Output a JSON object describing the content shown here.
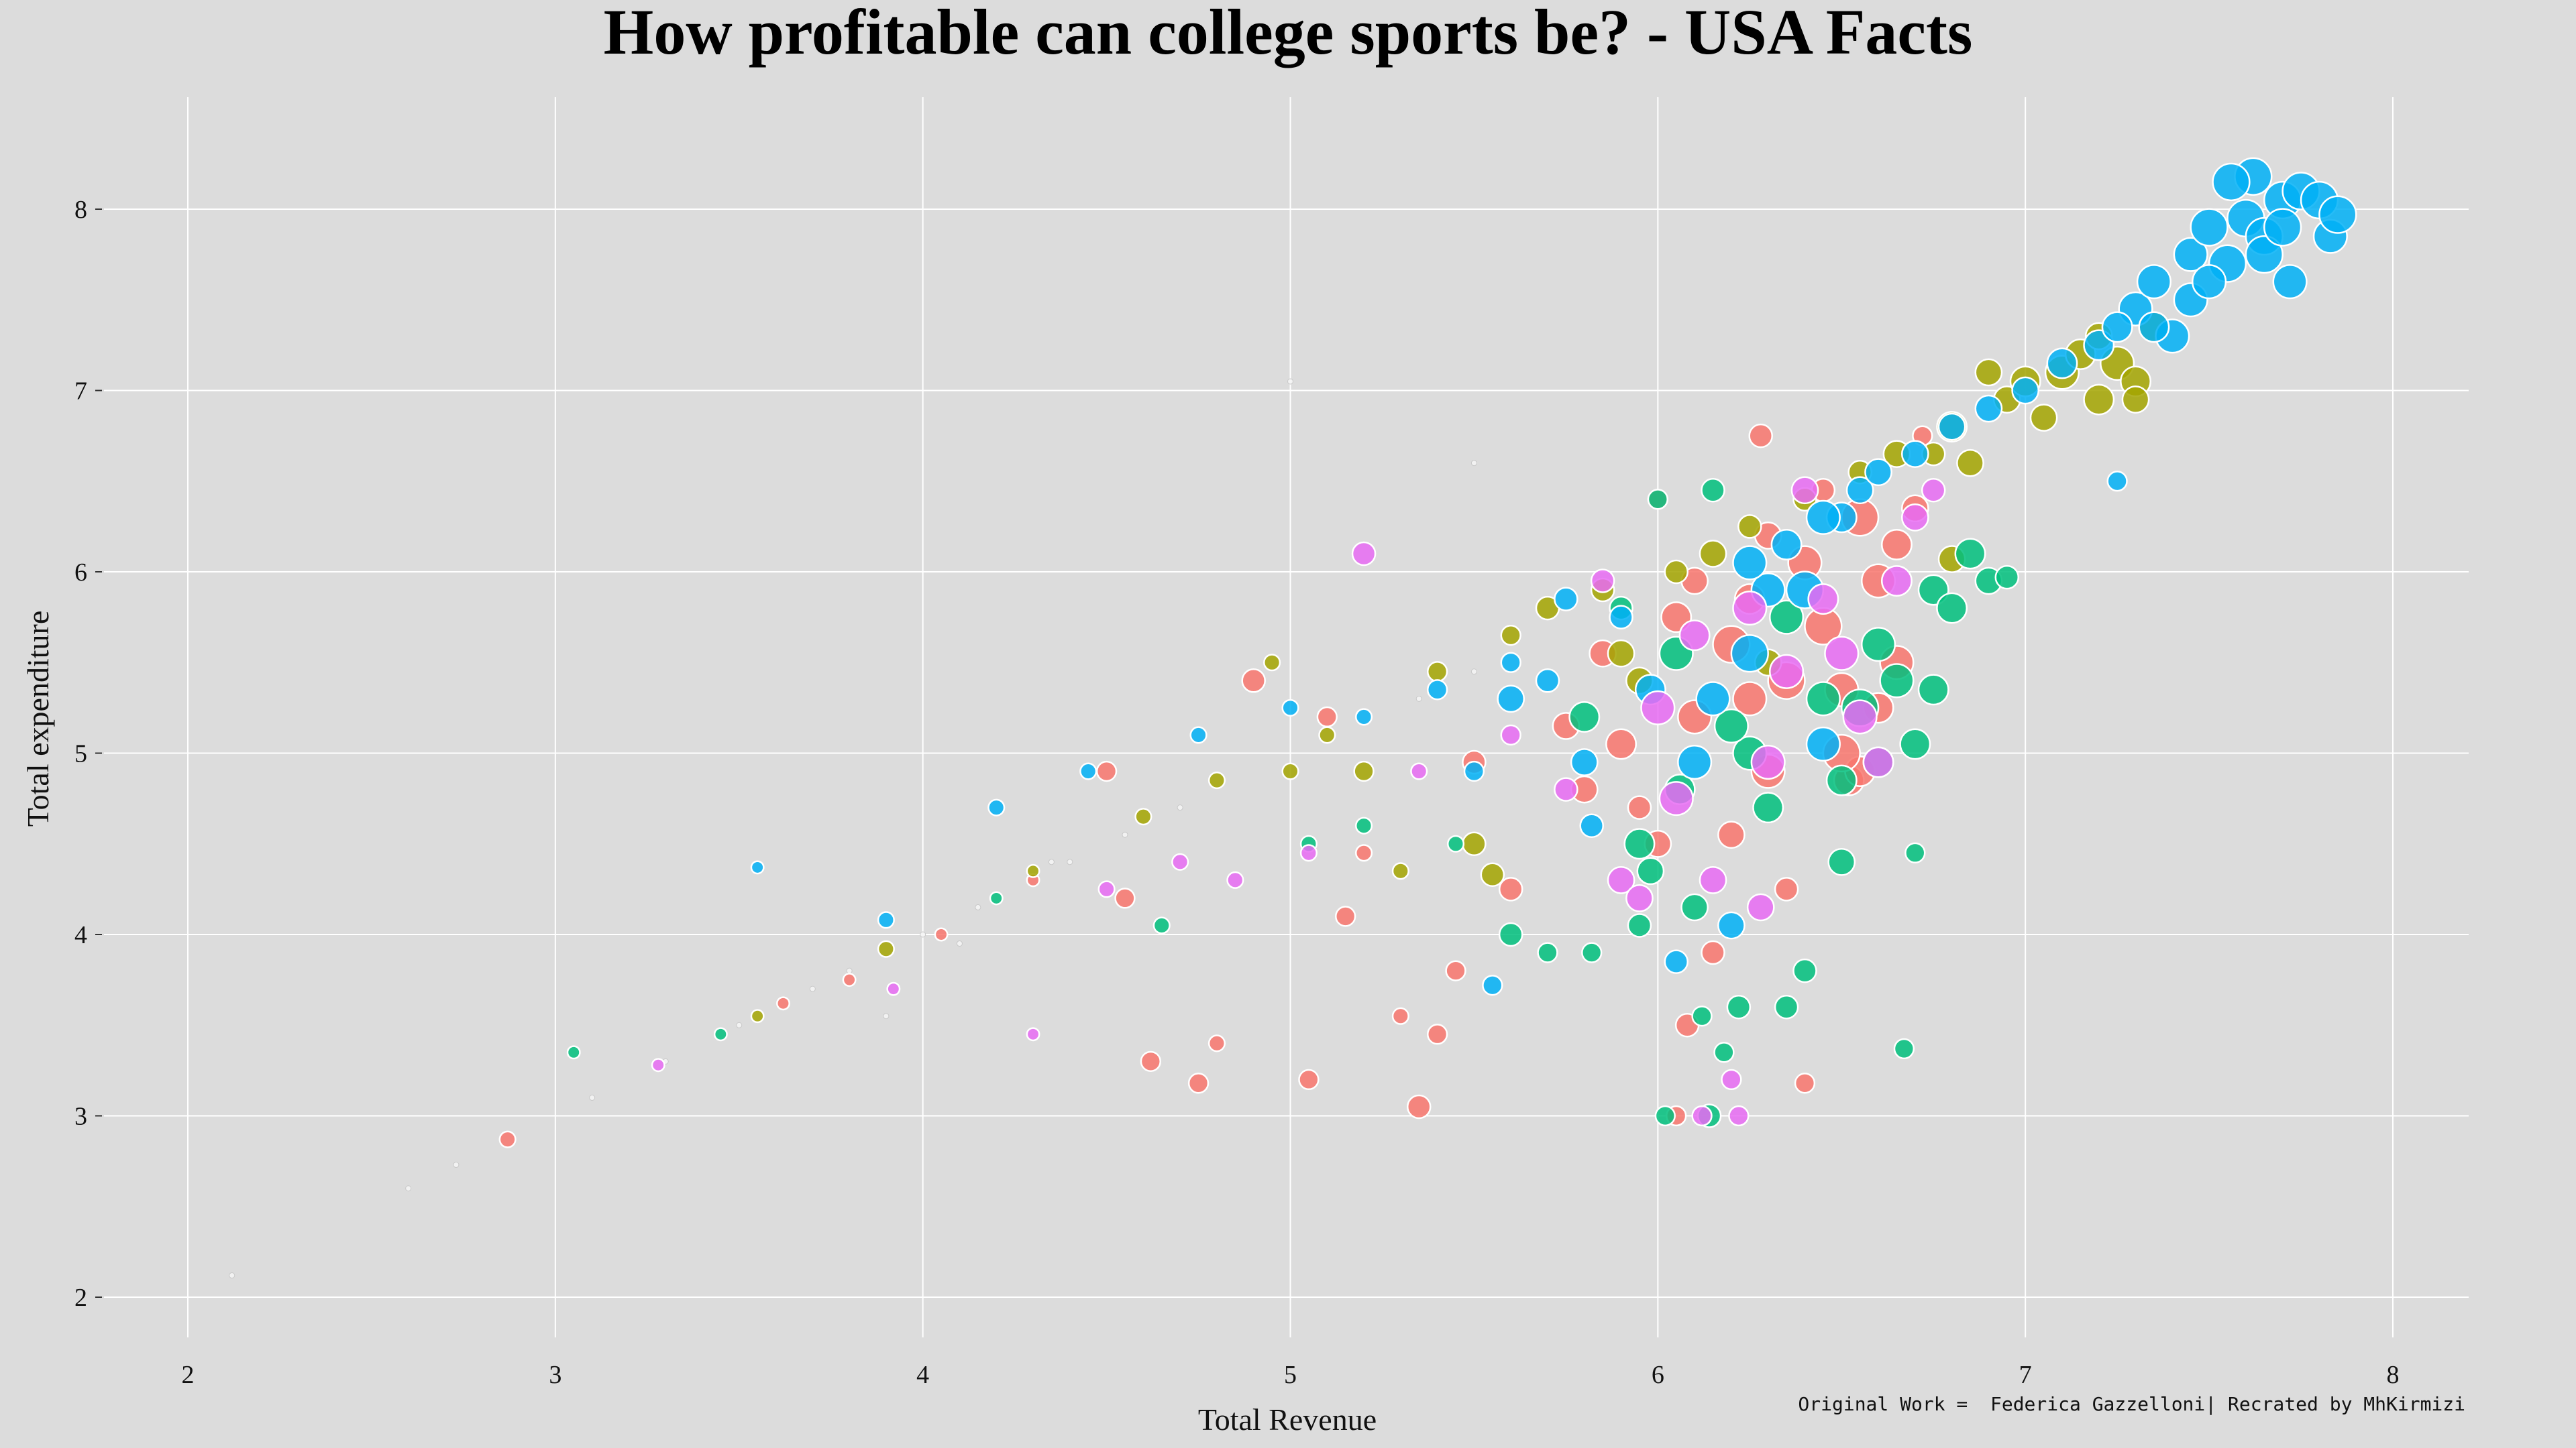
{
  "chart_data": {
    "type": "scatter",
    "title": "How profitable can college sports be? - USA Facts",
    "xlabel": "Total Revenue",
    "ylabel": "Total expenditure",
    "xlim": [
      1.8,
      8.2
    ],
    "ylim": [
      1.75,
      8.5
    ],
    "x_ticks": [
      "2",
      "3",
      "4",
      "5",
      "6",
      "7",
      "8"
    ],
    "y_ticks": [
      "2",
      "3",
      "4",
      "5",
      "6",
      "7",
      "8"
    ],
    "grid": true,
    "legend": "none",
    "series_colors": [
      "#f8766d",
      "#a3a500",
      "#00bf7d",
      "#00b0f6",
      "#e76bf3"
    ],
    "series": [
      {
        "color": "#f8766d",
        "points": [
          [
            2.87,
            2.87,
            3
          ],
          [
            3.62,
            3.62,
            2
          ],
          [
            3.8,
            3.75,
            2
          ],
          [
            4.05,
            4.0,
            2
          ],
          [
            4.5,
            4.9,
            4
          ],
          [
            4.55,
            4.2,
            4
          ],
          [
            4.62,
            3.3,
            4
          ],
          [
            4.75,
            3.18,
            4
          ],
          [
            4.8,
            3.4,
            3
          ],
          [
            4.9,
            5.4,
            5
          ],
          [
            5.05,
            3.2,
            4
          ],
          [
            5.15,
            4.1,
            4
          ],
          [
            5.2,
            4.45,
            3
          ],
          [
            5.3,
            3.55,
            3
          ],
          [
            5.35,
            3.05,
            5
          ],
          [
            5.4,
            3.45,
            4
          ],
          [
            5.45,
            3.8,
            4
          ],
          [
            5.6,
            4.25,
            5
          ],
          [
            5.8,
            4.8,
            6
          ],
          [
            5.9,
            5.05,
            7
          ],
          [
            5.95,
            4.7,
            5
          ],
          [
            6.0,
            6.4,
            4
          ],
          [
            6.05,
            3.0,
            4
          ],
          [
            6.08,
            3.5,
            5
          ],
          [
            6.1,
            5.2,
            8
          ],
          [
            6.15,
            3.9,
            5
          ],
          [
            6.2,
            5.6,
            9
          ],
          [
            6.25,
            5.85,
            7
          ],
          [
            6.3,
            4.9,
            8
          ],
          [
            6.35,
            5.4,
            9
          ],
          [
            6.4,
            6.05,
            8
          ],
          [
            6.45,
            5.7,
            9
          ],
          [
            6.5,
            5.35,
            8
          ],
          [
            6.52,
            4.85,
            7
          ],
          [
            6.55,
            6.3,
            9
          ],
          [
            6.6,
            5.95,
            8
          ],
          [
            6.65,
            6.15,
            7
          ],
          [
            6.7,
            6.35,
            6
          ],
          [
            6.72,
            6.75,
            4
          ],
          [
            6.28,
            6.75,
            5
          ],
          [
            6.4,
            3.18,
            4
          ],
          [
            5.75,
            5.15,
            6
          ],
          [
            6.0,
            4.5,
            6
          ],
          [
            6.35,
            4.25,
            5
          ],
          [
            6.55,
            4.9,
            7
          ],
          [
            6.65,
            5.5,
            8
          ],
          [
            5.85,
            5.55,
            6
          ],
          [
            6.05,
            5.75,
            7
          ],
          [
            6.3,
            6.2,
            6
          ],
          [
            6.45,
            6.45,
            5
          ],
          [
            5.1,
            5.2,
            4
          ],
          [
            4.3,
            4.3,
            2
          ],
          [
            5.5,
            4.95,
            5
          ],
          [
            6.2,
            4.55,
            6
          ],
          [
            6.5,
            5.0,
            9
          ],
          [
            6.25,
            5.3,
            8
          ],
          [
            6.1,
            5.95,
            6
          ],
          [
            6.6,
            5.25,
            7
          ]
        ]
      },
      {
        "color": "#a3a500",
        "points": [
          [
            3.55,
            3.55,
            2
          ],
          [
            3.9,
            3.92,
            3
          ],
          [
            4.3,
            4.35,
            2
          ],
          [
            4.6,
            4.65,
            3
          ],
          [
            4.8,
            4.85,
            3
          ],
          [
            4.95,
            5.5,
            3
          ],
          [
            5.1,
            5.1,
            3
          ],
          [
            5.2,
            4.9,
            4
          ],
          [
            5.3,
            4.35,
            3
          ],
          [
            5.4,
            5.45,
            4
          ],
          [
            5.5,
            4.5,
            5
          ],
          [
            5.55,
            4.33,
            5
          ],
          [
            5.6,
            5.65,
            4
          ],
          [
            5.7,
            5.8,
            5
          ],
          [
            5.85,
            5.9,
            5
          ],
          [
            5.95,
            5.4,
            6
          ],
          [
            6.05,
            6.0,
            5
          ],
          [
            6.15,
            6.1,
            6
          ],
          [
            6.25,
            6.25,
            5
          ],
          [
            6.4,
            6.4,
            5
          ],
          [
            6.55,
            6.55,
            5
          ],
          [
            6.65,
            6.65,
            6
          ],
          [
            6.75,
            6.65,
            5
          ],
          [
            6.8,
            6.8,
            7
          ],
          [
            6.85,
            6.6,
            6
          ],
          [
            6.95,
            6.95,
            6
          ],
          [
            7.0,
            7.05,
            7
          ],
          [
            7.05,
            6.85,
            6
          ],
          [
            7.1,
            7.1,
            8
          ],
          [
            7.15,
            7.2,
            7
          ],
          [
            7.2,
            6.95,
            7
          ],
          [
            7.25,
            7.15,
            8
          ],
          [
            7.3,
            7.05,
            7
          ],
          [
            7.35,
            7.35,
            7
          ],
          [
            6.9,
            7.1,
            6
          ],
          [
            7.2,
            7.3,
            6
          ],
          [
            6.8,
            6.07,
            6
          ],
          [
            7.3,
            6.95,
            6
          ],
          [
            5.0,
            4.9,
            3
          ],
          [
            5.9,
            5.55,
            6
          ],
          [
            6.3,
            5.5,
            6
          ]
        ]
      },
      {
        "color": "#00bf7d",
        "points": [
          [
            3.45,
            3.45,
            2
          ],
          [
            3.05,
            3.35,
            2
          ],
          [
            4.2,
            4.2,
            2
          ],
          [
            4.65,
            4.05,
            3
          ],
          [
            5.05,
            4.5,
            3
          ],
          [
            5.2,
            4.6,
            3
          ],
          [
            5.45,
            4.5,
            3
          ],
          [
            5.6,
            4.0,
            5
          ],
          [
            5.7,
            3.9,
            4
          ],
          [
            5.82,
            3.9,
            4
          ],
          [
            5.95,
            4.5,
            7
          ],
          [
            5.98,
            4.35,
            6
          ],
          [
            6.02,
            3.0,
            4
          ],
          [
            6.06,
            4.8,
            7
          ],
          [
            6.1,
            4.15,
            6
          ],
          [
            6.12,
            3.55,
            4
          ],
          [
            6.14,
            3.0,
            5
          ],
          [
            6.18,
            3.35,
            4
          ],
          [
            6.22,
            3.6,
            5
          ],
          [
            6.25,
            5.0,
            8
          ],
          [
            6.3,
            4.7,
            7
          ],
          [
            6.35,
            3.6,
            5
          ],
          [
            6.4,
            3.8,
            5
          ],
          [
            6.45,
            5.3,
            8
          ],
          [
            6.5,
            4.85,
            7
          ],
          [
            6.55,
            5.25,
            9
          ],
          [
            6.6,
            5.6,
            8
          ],
          [
            6.65,
            5.4,
            8
          ],
          [
            6.7,
            5.05,
            7
          ],
          [
            6.75,
            5.9,
            7
          ],
          [
            6.8,
            5.8,
            7
          ],
          [
            6.85,
            6.1,
            7
          ],
          [
            6.9,
            5.95,
            6
          ],
          [
            6.95,
            5.97,
            5
          ],
          [
            6.67,
            3.37,
            4
          ],
          [
            6.7,
            4.45,
            4
          ],
          [
            5.9,
            5.8,
            5
          ],
          [
            6.0,
            6.4,
            4
          ],
          [
            6.15,
            6.45,
            5
          ],
          [
            5.8,
            5.2,
            7
          ],
          [
            6.05,
            5.55,
            8
          ],
          [
            6.2,
            5.15,
            8
          ],
          [
            6.35,
            5.75,
            8
          ],
          [
            6.5,
            4.4,
            6
          ],
          [
            6.6,
            4.95,
            7
          ],
          [
            6.75,
            5.35,
            7
          ],
          [
            5.95,
            4.05,
            5
          ]
        ]
      },
      {
        "color": "#00b0f6",
        "points": [
          [
            3.55,
            4.37,
            2
          ],
          [
            3.9,
            4.08,
            3
          ],
          [
            4.2,
            4.7,
            3
          ],
          [
            4.45,
            4.9,
            3
          ],
          [
            4.75,
            5.1,
            3
          ],
          [
            5.0,
            5.25,
            3
          ],
          [
            5.2,
            5.2,
            3
          ],
          [
            5.4,
            5.35,
            4
          ],
          [
            5.5,
            4.9,
            4
          ],
          [
            5.55,
            3.72,
            4
          ],
          [
            5.6,
            5.5,
            4
          ],
          [
            5.7,
            5.4,
            5
          ],
          [
            5.75,
            5.85,
            5
          ],
          [
            5.82,
            4.6,
            5
          ],
          [
            5.9,
            5.75,
            5
          ],
          [
            5.98,
            5.35,
            7
          ],
          [
            6.05,
            3.85,
            5
          ],
          [
            6.1,
            4.95,
            8
          ],
          [
            6.15,
            5.3,
            8
          ],
          [
            6.2,
            4.05,
            6
          ],
          [
            6.25,
            5.55,
            9
          ],
          [
            6.3,
            5.9,
            8
          ],
          [
            6.35,
            6.15,
            7
          ],
          [
            6.4,
            5.9,
            9
          ],
          [
            6.45,
            5.05,
            8
          ],
          [
            6.5,
            6.3,
            7
          ],
          [
            6.55,
            6.45,
            6
          ],
          [
            6.6,
            6.55,
            6
          ],
          [
            6.7,
            6.65,
            6
          ],
          [
            6.8,
            6.8,
            6
          ],
          [
            6.9,
            6.9,
            6
          ],
          [
            7.0,
            7.0,
            6
          ],
          [
            7.1,
            7.15,
            7
          ],
          [
            7.2,
            7.25,
            7
          ],
          [
            7.25,
            6.5,
            4
          ],
          [
            7.3,
            7.45,
            8
          ],
          [
            7.35,
            7.6,
            8
          ],
          [
            7.4,
            7.3,
            8
          ],
          [
            7.45,
            7.75,
            8
          ],
          [
            7.5,
            7.9,
            9
          ],
          [
            7.55,
            7.7,
            9
          ],
          [
            7.6,
            7.95,
            9
          ],
          [
            7.62,
            8.18,
            9
          ],
          [
            7.65,
            7.85,
            9
          ],
          [
            7.7,
            8.05,
            9
          ],
          [
            7.72,
            7.6,
            8
          ],
          [
            7.75,
            8.1,
            9
          ],
          [
            7.8,
            8.05,
            9
          ],
          [
            7.83,
            7.85,
            8
          ],
          [
            7.85,
            7.97,
            9
          ],
          [
            7.56,
            8.15,
            9
          ],
          [
            7.45,
            7.5,
            8
          ],
          [
            7.35,
            7.35,
            7
          ],
          [
            7.25,
            7.35,
            7
          ],
          [
            7.65,
            7.75,
            9
          ],
          [
            7.7,
            7.9,
            9
          ],
          [
            7.5,
            7.6,
            8
          ],
          [
            6.25,
            6.05,
            8
          ],
          [
            6.45,
            6.3,
            8
          ],
          [
            5.6,
            5.3,
            6
          ],
          [
            5.8,
            4.95,
            6
          ]
        ]
      },
      {
        "color": "#e76bf3",
        "points": [
          [
            3.28,
            3.28,
            2
          ],
          [
            3.92,
            3.7,
            2
          ],
          [
            4.3,
            3.45,
            2
          ],
          [
            4.5,
            4.25,
            3
          ],
          [
            4.7,
            4.4,
            3
          ],
          [
            4.85,
            4.3,
            3
          ],
          [
            5.05,
            4.45,
            3
          ],
          [
            5.2,
            6.1,
            5
          ],
          [
            5.35,
            4.9,
            3
          ],
          [
            5.6,
            5.1,
            4
          ],
          [
            5.75,
            4.8,
            5
          ],
          [
            5.9,
            4.3,
            6
          ],
          [
            5.95,
            4.2,
            6
          ],
          [
            6.05,
            4.75,
            8
          ],
          [
            6.12,
            3.0,
            4
          ],
          [
            6.15,
            4.3,
            6
          ],
          [
            6.2,
            3.2,
            4
          ],
          [
            6.22,
            3.0,
            4
          ],
          [
            6.25,
            5.8,
            8
          ],
          [
            6.3,
            4.95,
            8
          ],
          [
            6.35,
            5.45,
            8
          ],
          [
            6.4,
            6.45,
            6
          ],
          [
            6.45,
            5.85,
            7
          ],
          [
            6.5,
            5.55,
            8
          ],
          [
            6.55,
            5.2,
            8
          ],
          [
            6.6,
            4.95,
            7
          ],
          [
            6.65,
            5.95,
            7
          ],
          [
            6.7,
            6.3,
            6
          ],
          [
            6.75,
            6.45,
            5
          ],
          [
            6.0,
            5.25,
            8
          ],
          [
            6.1,
            5.65,
            7
          ],
          [
            5.85,
            5.95,
            5
          ],
          [
            6.28,
            4.15,
            6
          ]
        ]
      }
    ],
    "faint_points": [
      [
        2.12,
        2.12
      ],
      [
        2.6,
        2.6
      ],
      [
        2.73,
        2.73
      ],
      [
        3.1,
        3.1
      ],
      [
        3.3,
        3.3
      ],
      [
        3.5,
        3.5
      ],
      [
        3.7,
        3.7
      ],
      [
        3.8,
        3.8
      ],
      [
        3.9,
        3.55
      ],
      [
        4.0,
        4.0
      ],
      [
        4.1,
        3.95
      ],
      [
        4.15,
        4.15
      ],
      [
        4.35,
        4.4
      ],
      [
        4.4,
        4.4
      ],
      [
        4.55,
        4.55
      ],
      [
        4.7,
        4.7
      ],
      [
        5.0,
        7.05
      ],
      [
        5.35,
        5.3
      ],
      [
        5.5,
        5.45
      ],
      [
        5.5,
        6.6
      ]
    ]
  },
  "caption": "Original Work =  Federica Gazzelloni| Recrated by MhKirmizi"
}
